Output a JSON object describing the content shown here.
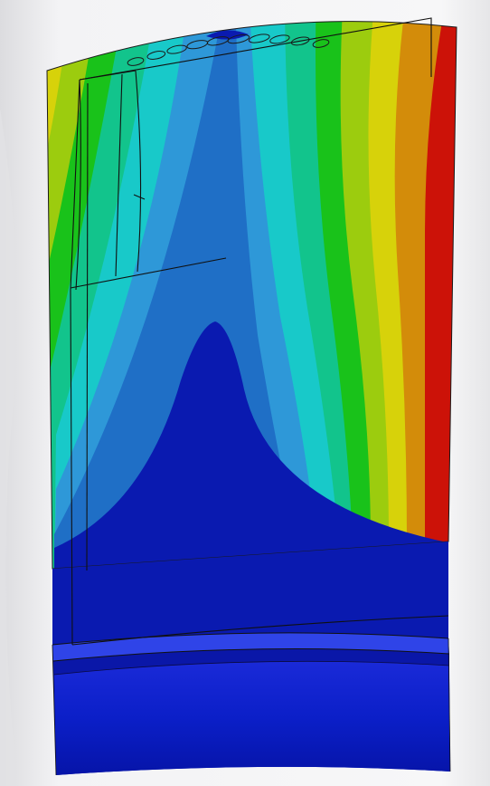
{
  "scene": {
    "subject": "turbine-blade-contour-plot",
    "background_color": "#f4f4f6",
    "contour_colors": {
      "level_1_dark_blue": "#0a1ab0",
      "level_2_blue": "#1f6fc6",
      "level_3_light_blue": "#2e98d8",
      "level_4_cyan": "#18c9c9",
      "level_5_teal_green": "#12c48c",
      "level_6_green": "#19c21a",
      "level_7_yellow_green": "#9ccc0e",
      "level_8_yellow": "#d7d20a",
      "level_9_orange": "#d38c0a",
      "level_10_red": "#cc1208"
    },
    "root_platform_color": "#0b1fc8",
    "outline_color": "#111111",
    "cooling_hole_count": 10
  }
}
